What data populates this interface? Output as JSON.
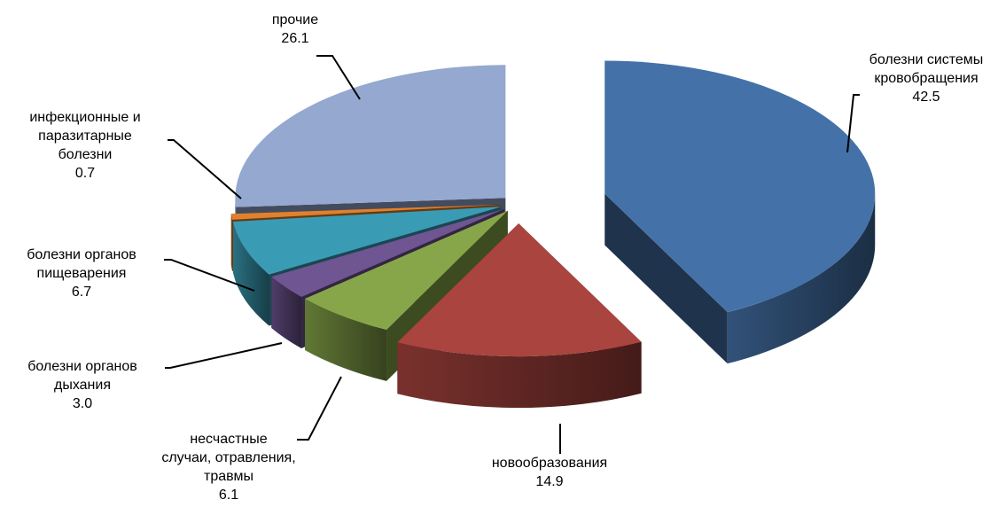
{
  "chart_data": {
    "type": "pie",
    "title": "",
    "legend": "none",
    "slices": [
      {
        "name": "болезни системы кровобращения",
        "label_lines": [
          "болезни системы",
          "кровобращения"
        ],
        "value": 42.5,
        "value_label": "42.5",
        "color": "#4472A8"
      },
      {
        "name": "новообразования",
        "label_lines": [
          "новообразования"
        ],
        "value": 14.9,
        "value_label": "14.9",
        "color": "#A9443F"
      },
      {
        "name": "несчастные случаи, отравления, травмы",
        "label_lines": [
          "несчастные",
          "случаи, отравления,",
          "травмы"
        ],
        "value": 6.1,
        "value_label": "6.1",
        "color": "#87A64A"
      },
      {
        "name": "болезни органов дыхания",
        "label_lines": [
          "болезни органов",
          "дыхания"
        ],
        "value": 3.0,
        "value_label": "3.0",
        "color": "#6F5592"
      },
      {
        "name": "болезни органов пищеварения",
        "label_lines": [
          "болезни органов",
          "пищеварения"
        ],
        "value": 6.7,
        "value_label": "6.7",
        "color": "#3A9BB4"
      },
      {
        "name": "инфекционные и паразитарные болезни",
        "label_lines": [
          "инфекционные и",
          "паразитарные",
          "болезни"
        ],
        "value": 0.7,
        "value_label": "0.7",
        "color": "#E0812D"
      },
      {
        "name": "прочие",
        "label_lines": [
          "прочие"
        ],
        "value": 26.1,
        "value_label": "26.1",
        "color": "#94A8D0"
      }
    ]
  }
}
